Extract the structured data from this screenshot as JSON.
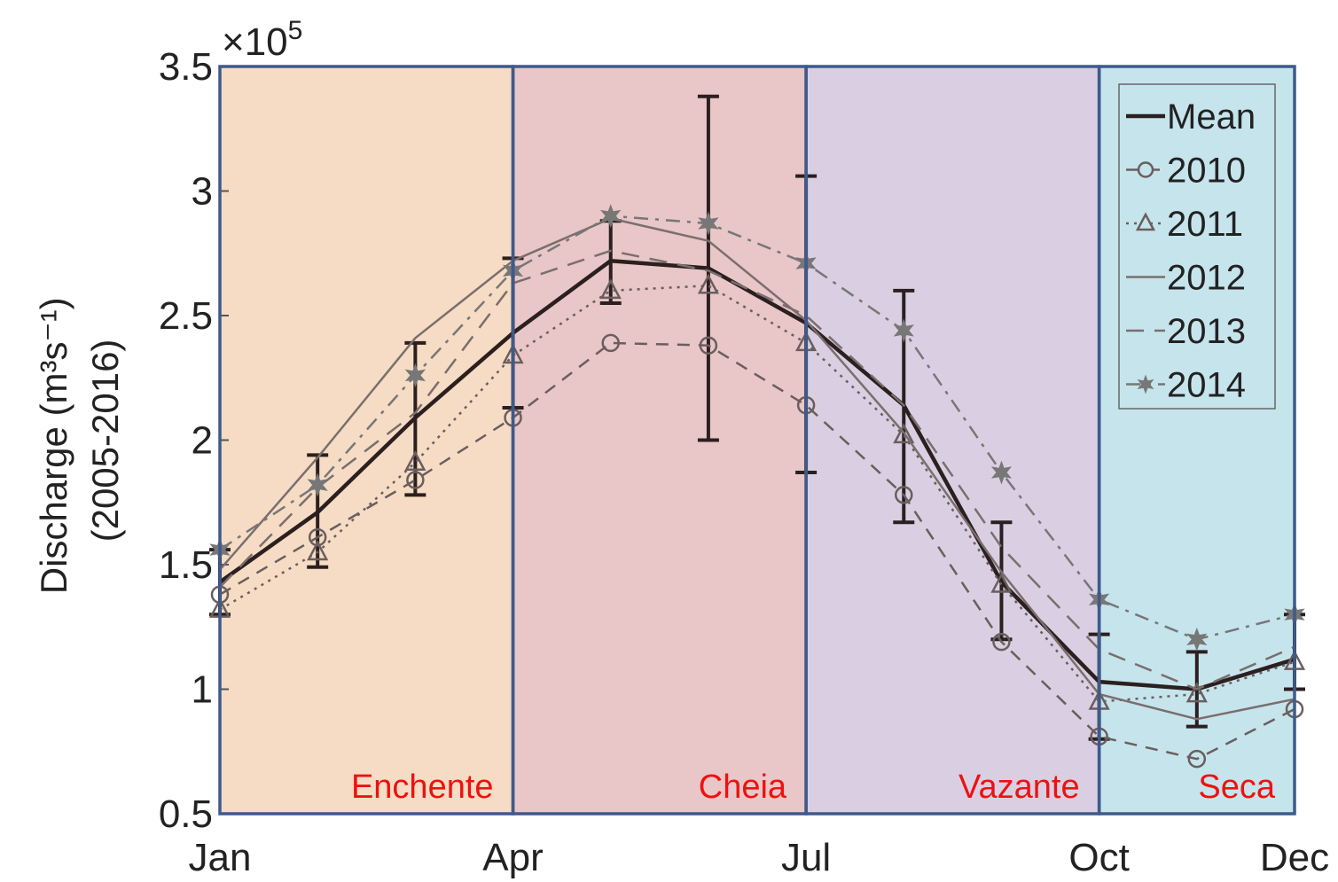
{
  "chart_data": {
    "type": "line",
    "x_tick_labels": [
      "Jan",
      "Apr",
      "Jul",
      "Oct",
      "Dec"
    ],
    "x_tick_positions": [
      1,
      4,
      7,
      10,
      12
    ],
    "x_range": [
      1,
      12
    ],
    "y_range": [
      50000,
      350000
    ],
    "y_ticks": [
      0.5,
      1,
      1.5,
      2,
      2.5,
      3,
      3.5
    ],
    "y_exponent_label": "×10",
    "y_exponent_power": "5",
    "ylabel_line1": "Discharge (m³s⁻¹)",
    "ylabel_line2": "(2005-2016)",
    "seasons": [
      {
        "label": "Enchente",
        "x_start": 1,
        "x_end": 4,
        "color": "#f6dcc4"
      },
      {
        "label": "Cheia",
        "x_start": 4,
        "x_end": 7,
        "color": "#e9c6c7"
      },
      {
        "label": "Vazante",
        "x_start": 7,
        "x_end": 10,
        "color": "#dacfe2"
      },
      {
        "label": "Seca",
        "x_start": 10,
        "x_end": 12,
        "color": "#c6e4ec"
      }
    ],
    "x": [
      1,
      2,
      3,
      4,
      5,
      6,
      7,
      8,
      9,
      10,
      11,
      12
    ],
    "series": [
      {
        "name": "Mean",
        "style": "solid-bold",
        "marker": "none",
        "color": "#2b1f1f",
        "values": [
          143000,
          171000,
          209000,
          243000,
          272000,
          269000,
          247000,
          214000,
          143000,
          103000,
          100000,
          112000
        ],
        "error": [
          [
            130000,
            156000
          ],
          [
            149000,
            194000
          ],
          [
            178000,
            239000
          ],
          [
            213000,
            273000
          ],
          [
            255000,
            288000
          ],
          [
            200000,
            338000
          ],
          [
            187000,
            306000
          ],
          [
            167000,
            260000
          ],
          [
            120000,
            167000
          ],
          [
            80000,
            122000
          ],
          [
            85000,
            115000
          ],
          [
            100000,
            130000
          ]
        ]
      },
      {
        "name": "2010",
        "style": "dashed",
        "marker": "circle",
        "color": "#6a5e5e",
        "values": [
          138000,
          161000,
          184000,
          209000,
          239000,
          238000,
          214000,
          178000,
          119000,
          81000,
          72000,
          92000
        ]
      },
      {
        "name": "2011",
        "style": "dotted",
        "marker": "triangle",
        "color": "#6a5e5e",
        "values": [
          132000,
          155000,
          191000,
          234000,
          260000,
          262000,
          239000,
          202000,
          142000,
          95000,
          98000,
          111000
        ]
      },
      {
        "name": "2012",
        "style": "solid-thin",
        "marker": "none",
        "color": "#7a6e6e",
        "values": [
          148000,
          193000,
          241000,
          272000,
          289000,
          280000,
          248000,
          203000,
          147000,
          98000,
          88000,
          96000
        ]
      },
      {
        "name": "2013",
        "style": "dashed-long",
        "marker": "none",
        "color": "#7a6e6e",
        "values": [
          141000,
          181000,
          211000,
          263000,
          276000,
          268000,
          250000,
          214000,
          157000,
          116000,
          100000,
          117000
        ]
      },
      {
        "name": "2014",
        "style": "dashdot",
        "marker": "star",
        "color": "#777777",
        "values": [
          156000,
          182000,
          226000,
          268000,
          290000,
          287000,
          271000,
          244000,
          187000,
          136000,
          120000,
          130000
        ]
      }
    ]
  }
}
